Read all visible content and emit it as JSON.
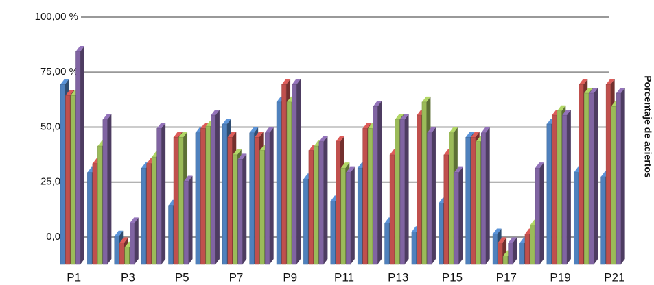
{
  "chart_data": {
    "type": "bar3d",
    "y_label": "Porcentaje de aciertos",
    "categories": [
      "P1",
      null,
      "P3",
      null,
      "P5",
      null,
      "P7",
      null,
      "P9",
      null,
      "P11",
      null,
      "P13",
      null,
      "P15",
      null,
      "P17",
      null,
      "P19",
      null,
      "P21"
    ],
    "series": [
      {
        "color": "#4f81bd",
        "values": [
          80,
          40,
          11,
          42,
          25,
          58,
          62,
          58,
          72,
          37,
          27,
          42,
          17,
          13,
          26,
          56,
          12,
          8,
          62,
          40,
          38
        ]
      },
      {
        "color": "#c0504d",
        "values": [
          75,
          44,
          8,
          44,
          56,
          60,
          56,
          56,
          80,
          50,
          54,
          60,
          48,
          66,
          48,
          56,
          8,
          12,
          66,
          80,
          80
        ]
      },
      {
        "color": "#9bbb59",
        "values": [
          75,
          52,
          6,
          47,
          56,
          61,
          48,
          50,
          72,
          52,
          42,
          60,
          64,
          72,
          58,
          54,
          2,
          16,
          68,
          76,
          70
        ]
      },
      {
        "color": "#8064a2",
        "values": [
          95,
          64,
          17,
          60,
          36,
          66,
          46,
          58,
          80,
          54,
          40,
          70,
          64,
          58,
          40,
          58,
          8,
          42,
          66,
          76,
          76
        ]
      }
    ],
    "ylim": [
      0,
      100
    ],
    "yticks": [
      {
        "value": 0,
        "label": "0,00 %"
      },
      {
        "value": 25,
        "label": "25,00 %"
      },
      {
        "value": 50,
        "label": "50,00 %"
      },
      {
        "value": 75,
        "label": "75,00 %"
      },
      {
        "value": 100,
        "label": "100,00 %"
      }
    ],
    "grid": true
  }
}
